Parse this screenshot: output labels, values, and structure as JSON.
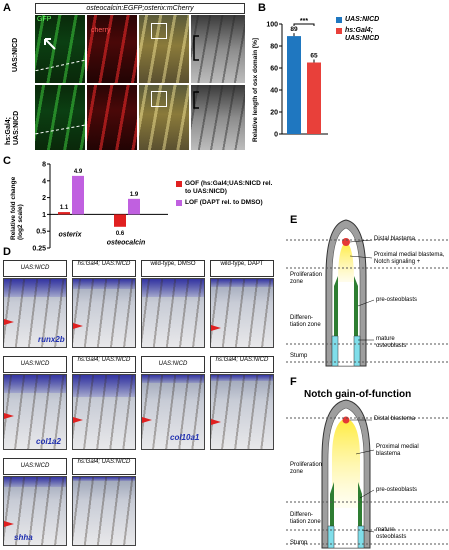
{
  "panel_labels": [
    "A",
    "B",
    "C",
    "D",
    "E",
    "F"
  ],
  "panel_a": {
    "header": "osteocalcin:EGFP;osterix:mCherry",
    "channel_gfp": "GFP",
    "channel_cherry": "cherry",
    "row1_label": "UAS:NICD",
    "row2_label": "hs:Gal4; UAS:NICD"
  },
  "panel_b": {
    "ylabel": "Relative length of osx domain [%]",
    "legend": [
      "UAS:NICD",
      "hs:Gal4; UAS:NICD"
    ],
    "significance": "***",
    "colors": [
      "#1f77c0",
      "#e8403a"
    ]
  },
  "panel_c": {
    "ylabel": "Relative fold change (log2 scale)",
    "legend": [
      "GOF (hs:Gal4;UAS:NICD rel. to UAS:NICD)",
      "LOF (DAPT rel. to DMSO)"
    ],
    "colors": [
      "#e02020",
      "#c060e0"
    ]
  },
  "chart_data": [
    {
      "type": "bar",
      "categories": [
        "UAS:NICD",
        "hs:Gal4; UAS:NICD"
      ],
      "values": [
        89,
        65
      ],
      "ylabel": "Relative length of osx domain [%]",
      "ylim": [
        0,
        100
      ],
      "yticks": [
        0,
        20,
        40,
        60,
        80,
        100
      ]
    },
    {
      "type": "bar",
      "categories": [
        "osterix",
        "osteocalcin"
      ],
      "series": [
        {
          "name": "GOF (hs:Gal4;UAS:NICD rel. to UAS:NICD)",
          "values": [
            1.1,
            0.6
          ]
        },
        {
          "name": "LOF (DAPT rel. to DMSO)",
          "values": [
            4.9,
            1.9
          ]
        }
      ],
      "ylabel": "Relative fold change (log2 scale)",
      "yscale": "log2",
      "ylim": [
        0.25,
        8
      ],
      "yticks": [
        0.25,
        0.5,
        1,
        2,
        4,
        8
      ],
      "ytick_labels": [
        "0.25",
        "0.5",
        "1",
        "2",
        "4",
        "8"
      ]
    }
  ],
  "panel_d": {
    "row1_headers": [
      "UAS:NICD",
      "hs:Gal4; UAS:NICD",
      "wild-type, DMSO",
      "wild-type, DAPT"
    ],
    "row2_headers": [
      "UAS:NICD",
      "hs:Gal4; UAS:NICD",
      "UAS:NICD",
      "hs:Gal4; UAS:NICD"
    ],
    "row3_headers": [
      "UAS:NICD",
      "hs:Gal4; UAS:NICD"
    ],
    "genes": [
      "runx2b",
      "col1a2",
      "col10a1",
      "shha"
    ]
  },
  "panel_e": {
    "labels": [
      "Distal blastema",
      "Proximal medial blastema, Notch signaling +",
      "pre-osteoblasts",
      "mature osteoblasts",
      "Proliferation zone",
      "Differen-tiation zone",
      "Stump"
    ]
  },
  "panel_f": {
    "title": "Notch gain-of-function",
    "labels": [
      "Distal blastema",
      "Proximal medial blastema",
      "pre-osteoblasts",
      "mature osteoblasts",
      "Proliferation zone",
      "Differen-tiation zone",
      "Stump"
    ]
  }
}
